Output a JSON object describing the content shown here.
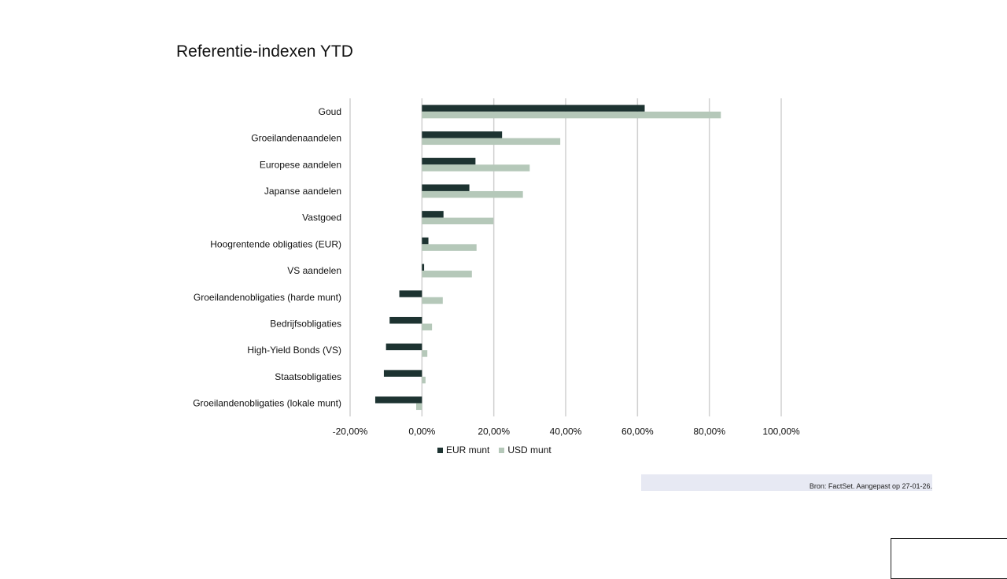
{
  "page": {
    "title": "Referentie-indexen YTD",
    "source": "Bron: FactSet. Aangepast op 27-01-26."
  },
  "chart_data": {
    "type": "bar",
    "orientation": "horizontal",
    "title": "Referentie-indexen YTD",
    "categories": [
      "Goud",
      "Groeilandenaandelen",
      "Europese aandelen",
      "Japanse aandelen",
      "Vastgoed",
      "Hoogrentende obligaties (EUR)",
      "VS aandelen",
      "Groeilandenobligaties (harde munt)",
      "Bedrijfsobligaties",
      "High-Yield Bonds (VS)",
      "Staatsobligaties",
      "Groeilandenobligaties (lokale munt)"
    ],
    "series": [
      {
        "name": "EUR munt",
        "color": "#1d3331",
        "values": [
          62.0,
          22.3,
          14.9,
          13.2,
          6.0,
          1.8,
          0.6,
          -6.3,
          -9.0,
          -10.0,
          -10.6,
          -13.0
        ]
      },
      {
        "name": "USD munt",
        "color": "#b5c8b9",
        "values": [
          83.2,
          38.5,
          30.0,
          28.1,
          19.9,
          15.2,
          13.9,
          5.8,
          2.8,
          1.5,
          1.0,
          -1.6
        ]
      }
    ],
    "xlim": [
      -20,
      100
    ],
    "xticks": [
      -20,
      0,
      20,
      40,
      60,
      80,
      100
    ],
    "xtick_labels": [
      "-20,00%",
      "0,00%",
      "20,00%",
      "40,00%",
      "60,00%",
      "80,00%",
      "100,00%"
    ],
    "grid": "vertical",
    "legend": "bottom"
  }
}
